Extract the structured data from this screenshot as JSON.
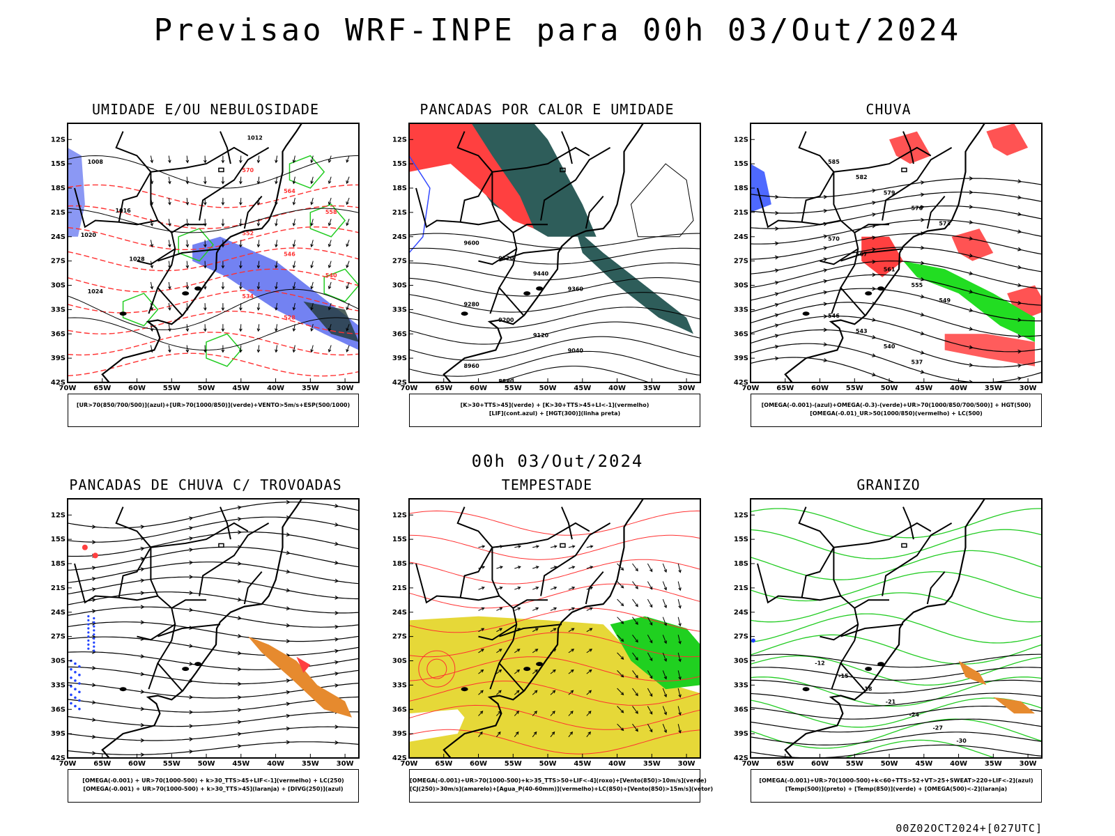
{
  "header": {
    "title": "Previsao WRF-INPE  para 00h 03/Out/2024"
  },
  "mid_title": "00h 03/Out/2024",
  "footer": "00Z02OCT2024+[027UTC]",
  "axes": {
    "lat_labels": [
      "12S",
      "15S",
      "18S",
      "21S",
      "24S",
      "27S",
      "30S",
      "33S",
      "36S",
      "39S",
      "42S"
    ],
    "lon_labels": [
      "70W",
      "65W",
      "60W",
      "55W",
      "50W",
      "45W",
      "40W",
      "35W",
      "30W"
    ]
  },
  "colors": {
    "humidity_blue": "#5a6cf0",
    "humidity_green": "#22cc22",
    "heat_red": "#ff4040",
    "heat_teal": "#2e5d5a",
    "rain_green": "#22dd22",
    "rain_blue": "#2244ff",
    "storm_yellow": "#e6d838",
    "storm_green": "#20d020",
    "hail_orange": "#e68a2e",
    "contour_red": "#ff3030"
  },
  "panels": [
    {
      "id": "umidade",
      "title": "UMIDADE E/OU NEBULOSIDADE",
      "legend": [
        "[UR>70(850/700/500)](azul)+[UR>70(1000/850)](verde)+VENTO>5m/s+ESP(500/1000)"
      ],
      "contour_labels": [
        "1008",
        "1012",
        "1016",
        "1020",
        "1024",
        "1028",
        "570",
        "564",
        "558",
        "552",
        "546",
        "540",
        "534",
        "528"
      ]
    },
    {
      "id": "pancadas-calor",
      "title": "PANCADAS POR CALOR E UMIDADE",
      "legend": [
        "[K>30+TTS>45](verde) + [K>30+TTS>45+LI<-1](vermelho)",
        "[LIF](cont.azul) + [HGT(300)](linha preta)"
      ],
      "contour_labels": [
        "9600",
        "9520",
        "9440",
        "9360",
        "9280",
        "9200",
        "9120",
        "9040",
        "8960",
        "8880"
      ]
    },
    {
      "id": "chuva",
      "title": "CHUVA",
      "legend": [
        "[OMEGA(-0.001)-(azul)+OMEGA(-0.3)-(verde)+UR>70(1000/850/700/500)] + HGT(500)",
        "[OMEGA(-0.01)_UR>50(1000/850)(vermelho) + LC(500)"
      ],
      "contour_labels": [
        "585",
        "582",
        "579",
        "576",
        "573",
        "570",
        "567",
        "561",
        "555",
        "549",
        "546",
        "543",
        "540",
        "537"
      ]
    },
    {
      "id": "trovoadas",
      "title": "PANCADAS DE CHUVA C/ TROVOADAS",
      "legend": [
        "[OMEGA(-0.001) + UR>70(1000-500) + k>30_TTS>45+LIF<-1](vermelho) + LC(250)",
        "[OMEGA(-0.001) + UR>70(1000-500) + k>30_TTS>45](laranja) + [DIVG(250)](azul)"
      ],
      "contour_labels": []
    },
    {
      "id": "tempestade",
      "title": "TEMPESTADE",
      "legend": [
        "[OMEGA(-0.001)+UR>70(1000-500)+k>35_TTS>50+LIF<-4](roxo)+[Vento(850)>10m/s](verde)",
        "[CJ(250)>30m/s](amarelo)+[Agua_P(40-60mm)](vermelho)+LC(850)+[Vento(850)>15m/s](vetor)"
      ],
      "contour_labels": []
    },
    {
      "id": "granizo",
      "title": "GRANIZO",
      "legend": [
        "[OMEGA(-0.001)+UR>70(1000-500)+k<60+TTS>52+VT>25+SWEAT>220+LIF<-2](azul)",
        "[Temp(500)](preto) + [Temp(850)](verde) + [OMEGA(500)<-2](laranja)"
      ],
      "contour_labels": [
        "-12",
        "-15",
        "-18",
        "-21",
        "-24",
        "-27",
        "-30"
      ]
    }
  ]
}
